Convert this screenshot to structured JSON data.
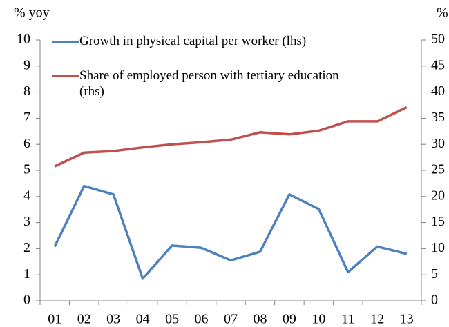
{
  "chart_data": {
    "type": "line",
    "y_label": "% yoy",
    "y2_label": "%",
    "categories": [
      "01",
      "02",
      "03",
      "04",
      "05",
      "06",
      "07",
      "08",
      "09",
      "10",
      "11",
      "12",
      "13"
    ],
    "series": [
      {
        "name": "Growth in physical capital per worker (lhs)",
        "color": "#4f81bd",
        "values": [
          2.08,
          4.4,
          4.08,
          0.85,
          2.12,
          2.03,
          1.55,
          1.88,
          4.08,
          3.52,
          1.1,
          2.08,
          1.8
        ]
      },
      {
        "name": "Share of employed person with tertiary education (rhs)",
        "color": "#c0504d",
        "axis": "y2",
        "values": [
          25.8,
          28.4,
          28.7,
          29.4,
          30.0,
          30.4,
          30.9,
          32.3,
          31.9,
          32.6,
          34.4,
          34.4,
          37.1
        ]
      }
    ],
    "ylim": [
      0,
      10
    ],
    "yticks": [
      0,
      1,
      2,
      3,
      4,
      5,
      6,
      7,
      8,
      9,
      10
    ],
    "y2lim": [
      0,
      50
    ],
    "y2ticks": [
      0,
      5,
      10,
      15,
      20,
      25,
      30,
      35,
      40,
      45,
      50
    ],
    "grid": false,
    "legend": "upper left"
  }
}
